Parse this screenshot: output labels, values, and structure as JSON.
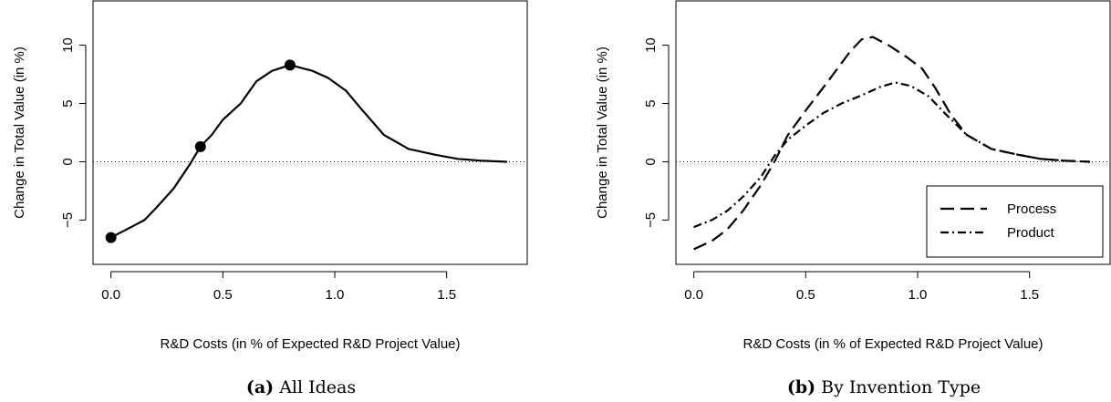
{
  "chart_data": [
    {
      "type": "line",
      "caption_prefix": "(a)",
      "caption_text": "All Ideas",
      "xlabel": "R&D Costs (in % of Expected R&D Project Value)",
      "ylabel": "Change in Total Value (in %)",
      "xlim": [
        -0.08,
        1.86
      ],
      "ylim": [
        -8.8,
        13.8
      ],
      "xticks": [
        0.0,
        0.5,
        1.0,
        1.5
      ],
      "xtick_labels": [
        "0.0",
        "0.5",
        "1.0",
        "1.5"
      ],
      "yticks": [
        -5,
        0,
        5,
        10
      ],
      "ytick_labels": [
        "−5",
        "0",
        "5",
        "10"
      ],
      "reference_line_y": 0,
      "grid": false,
      "series": [
        {
          "style": "solid",
          "x": [
            0.0,
            0.05,
            0.1,
            0.15,
            0.2,
            0.28,
            0.35,
            0.4,
            0.45,
            0.5,
            0.58,
            0.65,
            0.72,
            0.8,
            0.9,
            0.97,
            1.05,
            1.12,
            1.22,
            1.33,
            1.45,
            1.55,
            1.65,
            1.77
          ],
          "y": [
            -6.5,
            -6.0,
            -5.5,
            -5.0,
            -4.0,
            -2.3,
            -0.3,
            1.3,
            2.3,
            3.6,
            5.0,
            6.9,
            7.8,
            8.3,
            7.8,
            7.2,
            6.1,
            4.5,
            2.3,
            1.1,
            0.6,
            0.25,
            0.1,
            0.0
          ]
        }
      ],
      "markers": {
        "x": [
          0.0,
          0.4,
          0.8
        ],
        "y": [
          -6.5,
          1.3,
          8.3
        ]
      }
    },
    {
      "type": "line",
      "caption_prefix": "(b)",
      "caption_text": "By Invention Type",
      "xlabel": "R&D Costs (in % of Expected R&D Project Value)",
      "ylabel": "Change in Total Value (in %)",
      "xlim": [
        -0.08,
        1.86
      ],
      "ylim": [
        -8.8,
        13.8
      ],
      "xticks": [
        0.0,
        0.5,
        1.0,
        1.5
      ],
      "xtick_labels": [
        "0.0",
        "0.5",
        "1.0",
        "1.5"
      ],
      "yticks": [
        -5,
        0,
        5,
        10
      ],
      "ytick_labels": [
        "−5",
        "0",
        "5",
        "10"
      ],
      "reference_line_y": 0,
      "grid": false,
      "legend_position": "bottom-right",
      "series": [
        {
          "name": "Process",
          "style": "dashed",
          "x": [
            0.0,
            0.08,
            0.15,
            0.22,
            0.3,
            0.36,
            0.42,
            0.5,
            0.58,
            0.65,
            0.7,
            0.75,
            0.8,
            0.87,
            0.95,
            1.02,
            1.08,
            1.15,
            1.22,
            1.33,
            1.45,
            1.55,
            1.65,
            1.77
          ],
          "y": [
            -7.5,
            -6.8,
            -5.8,
            -4.2,
            -2.0,
            0.0,
            2.3,
            4.4,
            6.4,
            8.2,
            9.5,
            10.5,
            10.7,
            10.0,
            9.0,
            8.0,
            6.3,
            4.0,
            2.3,
            1.1,
            0.6,
            0.25,
            0.1,
            0.0
          ]
        },
        {
          "name": "Product",
          "style": "dotdash",
          "x": [
            0.0,
            0.08,
            0.15,
            0.22,
            0.3,
            0.36,
            0.42,
            0.5,
            0.58,
            0.66,
            0.75,
            0.83,
            0.9,
            0.97,
            1.05,
            1.12,
            1.22,
            1.33,
            1.45,
            1.55,
            1.65,
            1.77
          ],
          "y": [
            -5.6,
            -5.0,
            -4.2,
            -3.0,
            -1.3,
            0.5,
            1.9,
            3.1,
            4.2,
            5.0,
            5.7,
            6.4,
            6.8,
            6.5,
            5.6,
            4.2,
            2.3,
            1.1,
            0.6,
            0.25,
            0.1,
            0.0
          ]
        }
      ]
    }
  ]
}
